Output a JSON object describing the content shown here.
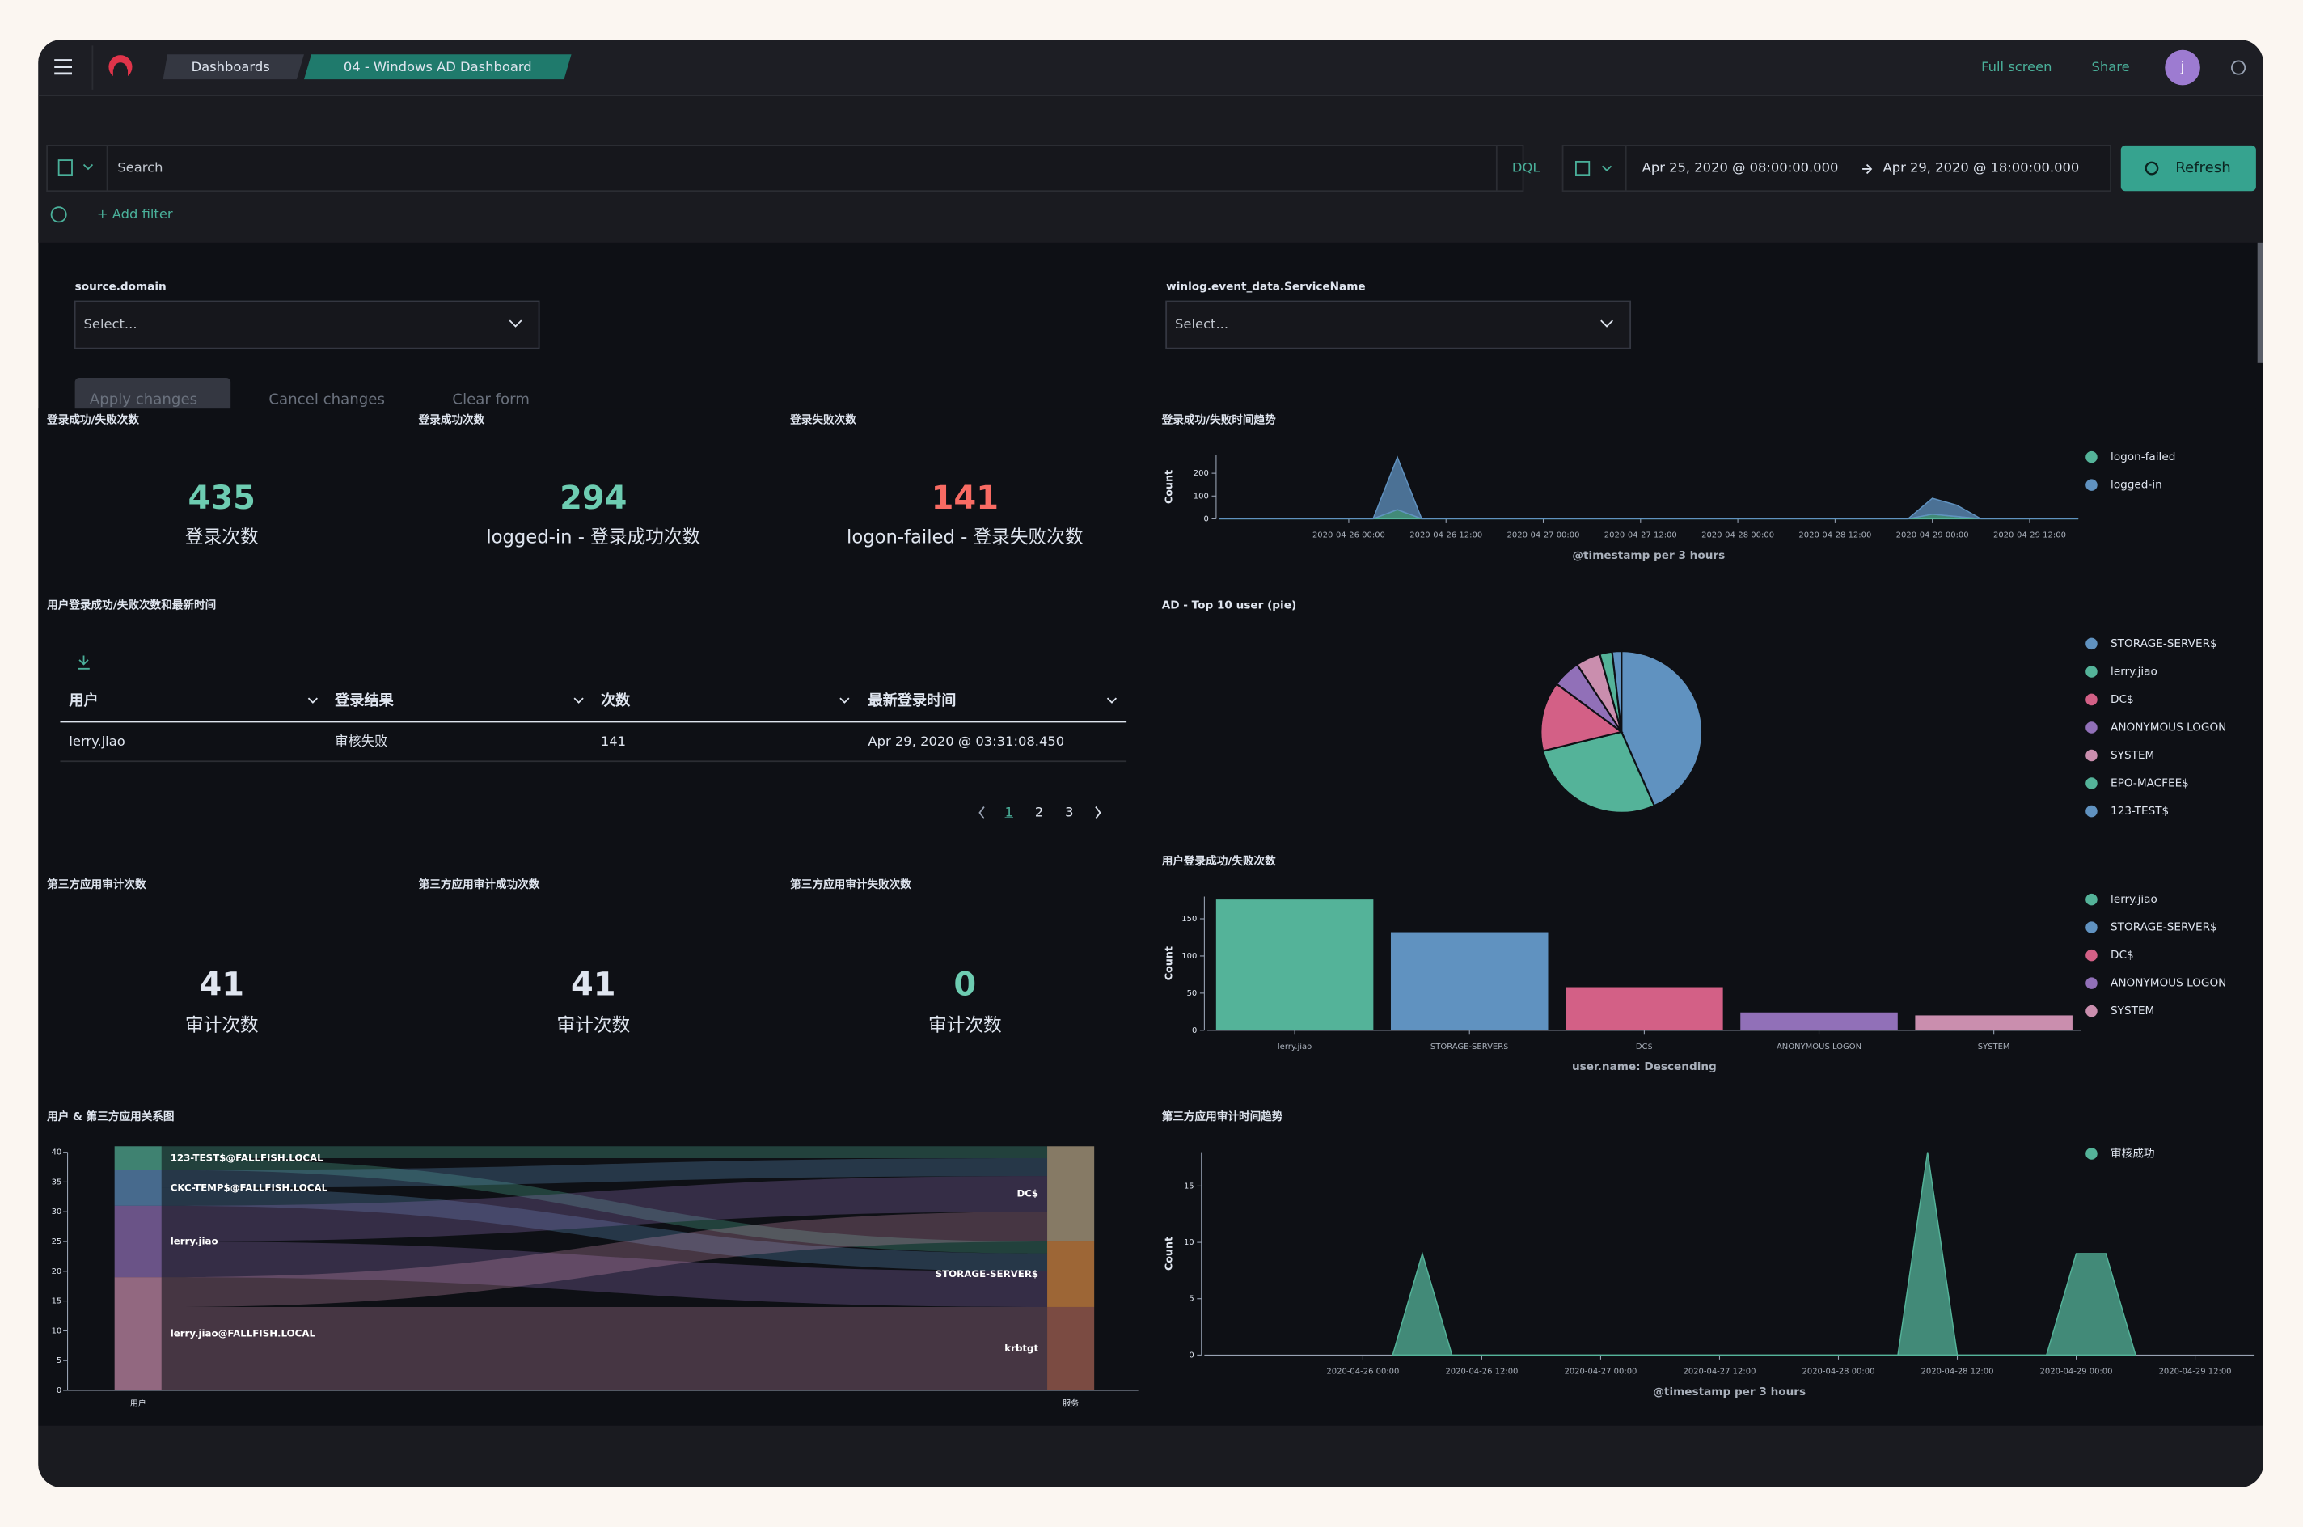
{
  "header": {
    "breadcrumbs": [
      "Dashboards",
      "04 - Windows AD Dashboard"
    ],
    "full_screen": "Full screen",
    "share": "Share",
    "avatar": "j"
  },
  "query_bar": {
    "search": "Search",
    "language": "DQL",
    "time_start": "Apr 25, 2020 @ 08:00:00.000",
    "time_end": "Apr 29, 2020 @ 18:00:00.000",
    "refresh": "Refresh",
    "add_filter": "+ Add filter"
  },
  "controls": {
    "fields": [
      {
        "label": "source.domain",
        "placeholder": "Select..."
      },
      {
        "label": "winlog.event_data.ServiceName",
        "placeholder": "Select..."
      }
    ],
    "buttons": [
      "Apply changes",
      "Cancel changes",
      "Clear form"
    ]
  },
  "login_metrics": [
    {
      "title": "登录成功/失败次数",
      "value": 435,
      "label": "登录次数",
      "color": "#6dccb1"
    },
    {
      "title": "登录成功次数",
      "value": 294,
      "label": "logged-in - 登录成功次数",
      "color": "#6dccb1"
    },
    {
      "title": "登录失败次数",
      "value": 141,
      "label": "logon-failed - 登录失败次数",
      "color": "#f86b63"
    }
  ],
  "audit_metrics": [
    {
      "title": "第三方应用审计次数",
      "value": 41,
      "label": "审计次数",
      "color": "#dfe5ef"
    },
    {
      "title": "第三方应用审计成功次数",
      "value": 41,
      "label": "审计次数",
      "color": "#dfe5ef"
    },
    {
      "title": "第三方应用审计失败次数",
      "value": 0,
      "label": "审计次数",
      "color": "#6dccb1"
    }
  ],
  "table": {
    "title": "用户登录成功/失败次数和最新时间",
    "columns": [
      "用户",
      "登录结果",
      "次数",
      "最新登录时间"
    ],
    "rows": [
      [
        "lerry.jiao",
        "审核失败",
        141,
        "Apr 29, 2020 @ 03:31:08.450"
      ]
    ],
    "pages": [
      "1",
      "2",
      "3"
    ]
  },
  "chart_data": [
    {
      "type": "area",
      "title": "登录成功/失败时间趋势",
      "x_label": "@timestamp per 3 hours",
      "y_label": "Count",
      "stacked": true,
      "legend": "right",
      "x": [
        "2020-04-25 08:00",
        "2020-04-26 03:00",
        "2020-04-26 06:00",
        "2020-04-26 09:00",
        "2020-04-28 21:00",
        "2020-04-29 00:00",
        "2020-04-29 03:00",
        "2020-04-29 06:00",
        "2020-04-29 18:00"
      ],
      "xlim": [
        "2020-04-25 08:00",
        "2020-04-29 18:00"
      ],
      "xticks": [
        "2020-04-26 00:00",
        "2020-04-26 12:00",
        "2020-04-27 00:00",
        "2020-04-27 12:00",
        "2020-04-28 00:00",
        "2020-04-28 12:00",
        "2020-04-29 00:00",
        "2020-04-29 12:00"
      ],
      "ylim": [
        0,
        280
      ],
      "yticks": [
        0,
        100,
        200
      ],
      "series": [
        {
          "name": "logon-failed",
          "color": "#54b399",
          "values": [
            0,
            0,
            40,
            0,
            0,
            20,
            10,
            0,
            0
          ]
        },
        {
          "name": "logged-in",
          "color": "#6092c0",
          "values": [
            0,
            0,
            230,
            0,
            0,
            70,
            50,
            0,
            0
          ]
        }
      ]
    },
    {
      "type": "pie",
      "title": "AD - Top 10 user (pie)",
      "legend": "right",
      "categories": [
        "STORAGE-SERVER$",
        "lerry.jiao",
        "DC$",
        "ANONYMOUS LOGON",
        "SYSTEM",
        "EPO-MACFEE$",
        "123-TEST$"
      ],
      "values": [
        140,
        90,
        45,
        18,
        16,
        8,
        6
      ],
      "colors": [
        "#6092c0",
        "#54b399",
        "#d36086",
        "#9170b8",
        "#ca8eae",
        "#54b399",
        "#6092c0"
      ]
    },
    {
      "type": "bar",
      "title": "用户登录成功/失败次数",
      "x_label": "user.name: Descending",
      "y_label": "Count",
      "legend": "right",
      "categories": [
        "lerry.jiao",
        "STORAGE-SERVER$",
        "DC$",
        "ANONYMOUS LOGON",
        "SYSTEM"
      ],
      "values": [
        176,
        132,
        58,
        24,
        20
      ],
      "colors": [
        "#54b399",
        "#6092c0",
        "#d36086",
        "#9170b8",
        "#ca8eae"
      ],
      "ylim": [
        0,
        180
      ],
      "yticks": [
        0,
        50,
        100,
        150
      ]
    },
    {
      "type": "area",
      "title": "第三方应用审计时间趋势",
      "x_label": "@timestamp per 3 hours",
      "y_label": "Count",
      "stacked": false,
      "legend": "right",
      "x": [
        "2020-04-26 03:00",
        "2020-04-26 06:00",
        "2020-04-26 09:00",
        "2020-04-28 06:00",
        "2020-04-28 09:00",
        "2020-04-28 12:00",
        "2020-04-28 21:00",
        "2020-04-29 00:00",
        "2020-04-29 03:00",
        "2020-04-29 06:00"
      ],
      "xlim": [
        "2020-04-25 08:00",
        "2020-04-29 18:00"
      ],
      "xticks": [
        "2020-04-26 00:00",
        "2020-04-26 12:00",
        "2020-04-27 00:00",
        "2020-04-27 12:00",
        "2020-04-28 00:00",
        "2020-04-28 12:00",
        "2020-04-29 00:00",
        "2020-04-29 12:00"
      ],
      "ylim": [
        0,
        18
      ],
      "yticks": [
        0,
        5,
        10,
        15
      ],
      "series": [
        {
          "name": "审核成功",
          "color": "#54b399",
          "values": [
            0,
            9,
            0,
            0,
            18,
            0,
            0,
            9,
            9,
            0
          ]
        }
      ]
    },
    {
      "type": "sankey",
      "title": "用户 & 第三方应用关系图",
      "x_labels": [
        "用户",
        "服务"
      ],
      "ylim": [
        0,
        40
      ],
      "yticks": [
        0,
        5,
        10,
        15,
        20,
        25,
        30,
        35,
        40
      ],
      "sources": [
        {
          "name": "123-TEST$@FALLFISH.LOCAL",
          "color": "#54b399"
        },
        {
          "name": "CKC-TEMP$@FALLFISH.LOCAL",
          "color": "#6092c0"
        },
        {
          "name": "lerry.jiao",
          "color": "#9170b8"
        },
        {
          "name": "lerry.jiao@FALLFISH.LOCAL",
          "color": "#ca8eae"
        }
      ],
      "targets": [
        {
          "name": "DC$",
          "color": "#b9a888"
        },
        {
          "name": "STORAGE-SERVER$",
          "color": "#da8b45"
        },
        {
          "name": "krbtgt",
          "color": "#aa6556"
        }
      ],
      "links": [
        {
          "source": "123-TEST$@FALLFISH.LOCAL",
          "target": "DC$",
          "value": 2
        },
        {
          "source": "123-TEST$@FALLFISH.LOCAL",
          "target": "STORAGE-SERVER$",
          "value": 2
        },
        {
          "source": "CKC-TEMP$@FALLFISH.LOCAL",
          "target": "DC$",
          "value": 3
        },
        {
          "source": "CKC-TEMP$@FALLFISH.LOCAL",
          "target": "STORAGE-SERVER$",
          "value": 3
        },
        {
          "source": "lerry.jiao",
          "target": "DC$",
          "value": 6
        },
        {
          "source": "lerry.jiao",
          "target": "STORAGE-SERVER$",
          "value": 6
        },
        {
          "source": "lerry.jiao@FALLFISH.LOCAL",
          "target": "DC$",
          "value": 5
        },
        {
          "source": "lerry.jiao@FALLFISH.LOCAL",
          "target": "krbtgt",
          "value": 14
        }
      ]
    }
  ]
}
